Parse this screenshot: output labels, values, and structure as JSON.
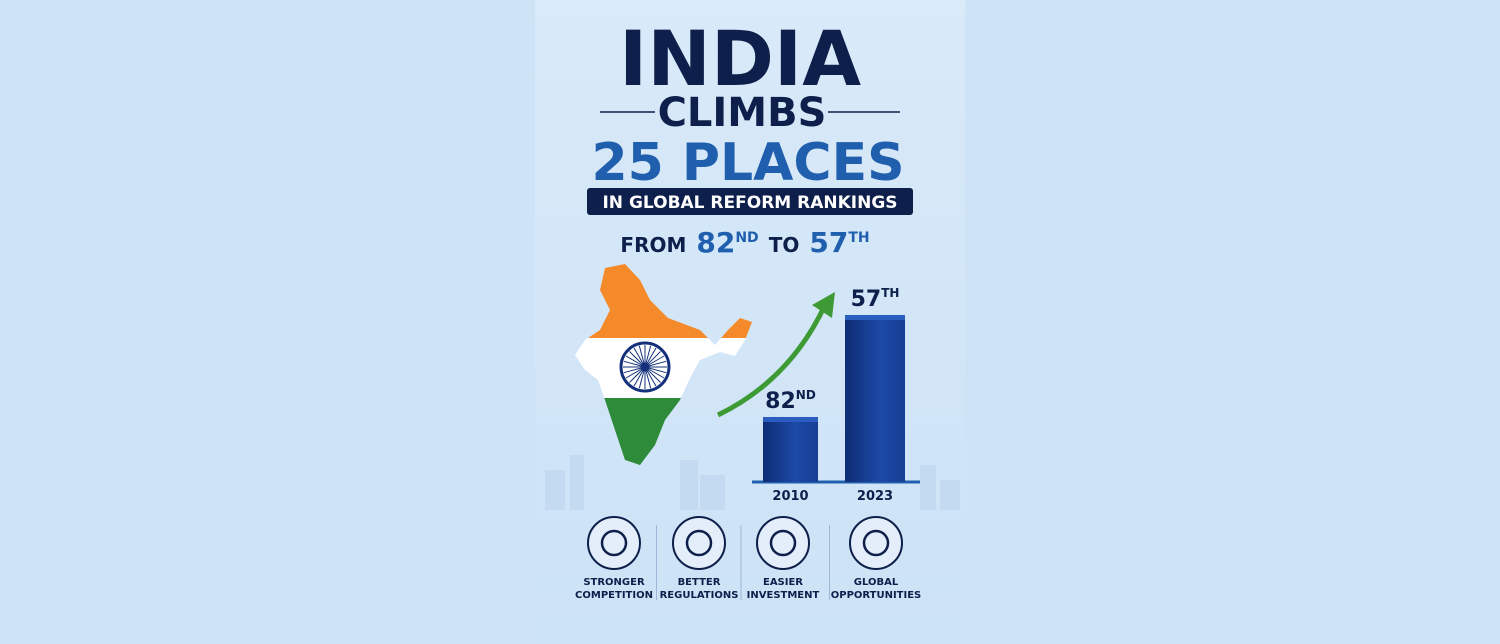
{
  "header": {
    "line1": "INDIA",
    "line2": "CLIMBS",
    "line3": "25 PLACES",
    "banner": "IN GLOBAL REFORM RANKINGS",
    "from": "FROM",
    "to": "TO"
  },
  "bars": [
    {
      "year": "2010",
      "rank": 82,
      "suffix": "ND"
    },
    {
      "year": "2023",
      "rank": 57,
      "suffix": "TH"
    }
  ],
  "features": [
    {
      "line1": "STRONGER",
      "line2": "COMPETITION"
    },
    {
      "line1": "BETTER",
      "line2": "REGULATIONS"
    },
    {
      "line1": "EASIER",
      "line2": "INVESTMENT"
    },
    {
      "line1": "GLOBAL",
      "line2": "OPPORTUNITIES"
    }
  ]
}
